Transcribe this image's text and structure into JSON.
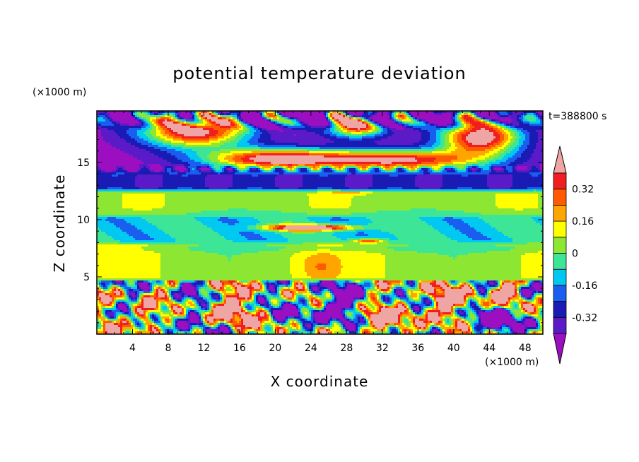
{
  "chart_data": {
    "type": "heatmap",
    "title": "potential temperature deviation",
    "xlabel": "X coordinate",
    "ylabel": "Z coordinate",
    "x_unit": "(×1000 m)",
    "y_unit": "(×1000 m)",
    "time_label": "t=388800 s",
    "xlim": [
      0,
      50
    ],
    "ylim": [
      0,
      19.5
    ],
    "x_ticks": [
      4,
      8,
      12,
      16,
      20,
      24,
      28,
      32,
      36,
      40,
      44,
      48
    ],
    "y_ticks": [
      5,
      10,
      15
    ],
    "colorbar": {
      "tick_labels": [
        "0.32",
        "0.16",
        "0",
        "-0.16",
        "-0.32"
      ],
      "tick_values": [
        0.32,
        0.16,
        0,
        -0.16,
        -0.32
      ],
      "levels": [
        -0.4,
        -0.32,
        -0.24,
        -0.16,
        -0.08,
        0,
        0.08,
        0.16,
        0.24,
        0.32,
        0.4
      ],
      "colors": [
        "#9b0fc0",
        "#5b1ac8",
        "#1a1ab4",
        "#1a5ef0",
        "#00c8f0",
        "#3ce696",
        "#8ce632",
        "#ffff00",
        "#ffa500",
        "#ff5a00",
        "#f01e1e",
        "#f0a5a5"
      ],
      "extend": "both"
    },
    "field_bands": [
      {
        "z": [
          0,
          4.7
        ],
        "description": "mixed convective layer, values -0.48 to 0.48"
      },
      {
        "z": [
          4.7,
          8
        ],
        "dominant": 0.04
      },
      {
        "z": [
          8,
          10.5
        ],
        "dominant": -0.1
      },
      {
        "z": [
          10.5,
          12.5
        ],
        "dominant": 0.06
      },
      {
        "z": [
          12.5,
          14
        ],
        "dominant": -0.2
      },
      {
        "z": [
          14,
          19.5
        ],
        "description": "alternating -0.45 and 0.45 patches"
      }
    ]
  }
}
